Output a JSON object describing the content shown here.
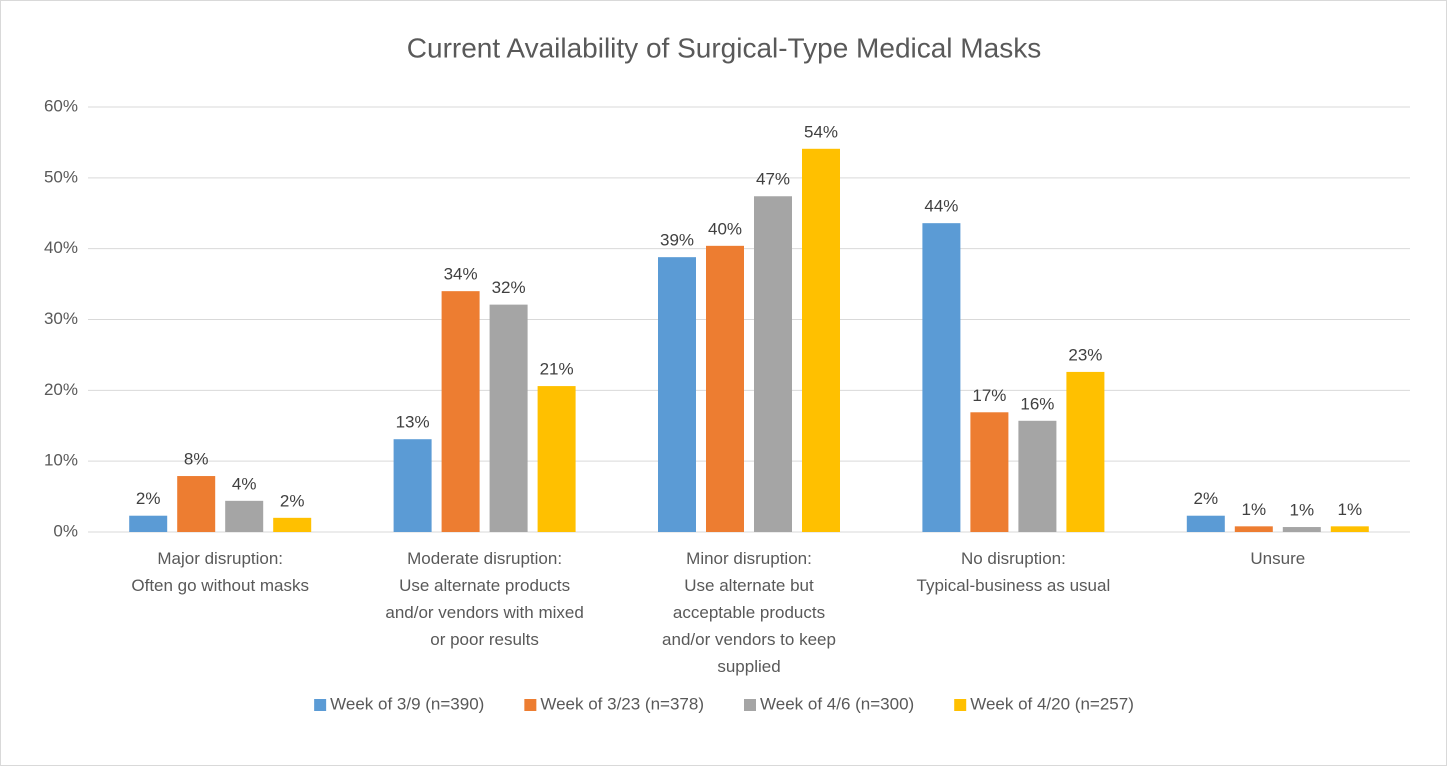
{
  "chart_data": {
    "type": "bar",
    "title": "Current Availability of Surgical-Type Medical Masks",
    "categories": [
      [
        "Major disruption:",
        "Often go without masks"
      ],
      [
        "Moderate disruption:",
        "Use alternate products",
        "and/or vendors with mixed",
        "or poor results"
      ],
      [
        "Minor disruption:",
        "Use alternate but",
        "acceptable products",
        "and/or vendors to keep",
        "supplied"
      ],
      [
        "No disruption:",
        "Typical-business as usual"
      ],
      [
        "Unsure"
      ]
    ],
    "series": [
      {
        "name": "Week of 3/9 (n=390)",
        "color": "#5b9bd5",
        "values": [
          2.3,
          13.1,
          38.8,
          43.6,
          2.3
        ],
        "value_labels": [
          "2%",
          "13%",
          "39%",
          "44%",
          "2%"
        ]
      },
      {
        "name": "Week of 3/23 (n=378)",
        "color": "#ed7d31",
        "values": [
          7.9,
          34.0,
          40.4,
          16.9,
          0.8
        ],
        "value_labels": [
          "8%",
          "34%",
          "40%",
          "17%",
          "1%"
        ]
      },
      {
        "name": "Week of 4/6 (n=300)",
        "color": "#a5a5a5",
        "values": [
          4.4,
          32.1,
          47.4,
          15.7,
          0.7
        ],
        "value_labels": [
          "4%",
          "32%",
          "47%",
          "16%",
          "1%"
        ]
      },
      {
        "name": "Week of 4/20 (n=257)",
        "color": "#ffc000",
        "values": [
          2.0,
          20.6,
          54.1,
          22.6,
          0.8
        ],
        "value_labels": [
          "2%",
          "21%",
          "54%",
          "23%",
          "1%"
        ]
      }
    ],
    "ylim": [
      0,
      60
    ],
    "yticks": [
      {
        "value": 0,
        "label": "0%"
      },
      {
        "value": 10,
        "label": "10%"
      },
      {
        "value": 20,
        "label": "20%"
      },
      {
        "value": 30,
        "label": "30%"
      },
      {
        "value": 40,
        "label": "40%"
      },
      {
        "value": 50,
        "label": "50%"
      },
      {
        "value": 60,
        "label": "60%"
      }
    ],
    "grid": true,
    "legend": "bottom"
  }
}
